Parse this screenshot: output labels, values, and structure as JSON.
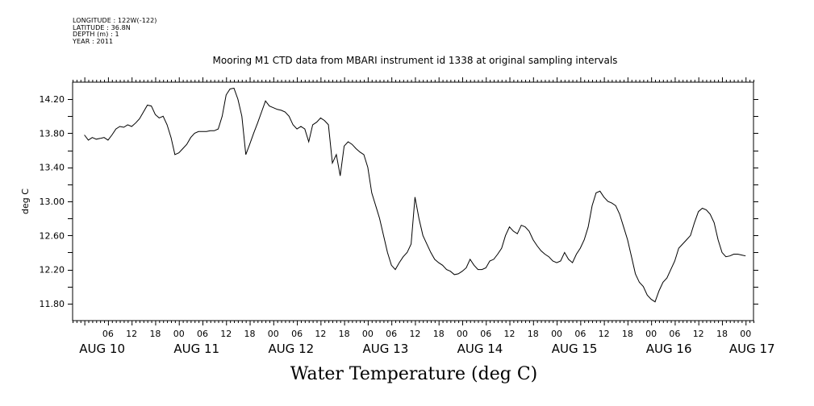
{
  "header": {
    "longitude": "LONGITUDE : 122W(-122)",
    "latitude": "LATITUDE : 36.8N",
    "depth": "DEPTH (m) : 1",
    "year": "YEAR : 2011",
    "title": "Mooring M1 CTD data from MBARI instrument id 1338 at original sampling intervals"
  },
  "chart_data": {
    "type": "line",
    "title": "Mooring M1 CTD data from MBARI instrument id 1338 at original sampling intervals",
    "xlabel": "Water Temperature (deg C)",
    "ylabel": "deg C",
    "xlim_hours_from_aug10_00": [
      -3,
      170
    ],
    "ylim": [
      11.6,
      14.4
    ],
    "y_ticks": [
      "11.80",
      "12.20",
      "12.60",
      "13.00",
      "13.40",
      "13.80",
      "14.20"
    ],
    "x_hour_ticks": [
      "06",
      "12",
      "18",
      "00",
      "06",
      "12",
      "18",
      "00",
      "06",
      "12",
      "18",
      "00",
      "06",
      "12",
      "18",
      "00",
      "06",
      "12",
      "18",
      "00",
      "06",
      "12",
      "18",
      "00",
      "06",
      "12",
      "18",
      "00"
    ],
    "day_labels": [
      "AUG 10",
      "AUG 11",
      "AUG 12",
      "AUG 13",
      "AUG 14",
      "AUG 15",
      "AUG 16",
      "AUG 17"
    ],
    "grid": false,
    "series": [
      {
        "color": "#000000",
        "hours_from_aug10_00": [
          0,
          1,
          2,
          3,
          4,
          5,
          6,
          7,
          8,
          9,
          10,
          11,
          12,
          13,
          14,
          15,
          16,
          17,
          18,
          19,
          20,
          21,
          22,
          23,
          24,
          25,
          26,
          27,
          28,
          29,
          30,
          31,
          32,
          33,
          34,
          35,
          36,
          37,
          38,
          39,
          40,
          41,
          42,
          43,
          44,
          45,
          46,
          47,
          48,
          49,
          50,
          51,
          52,
          53,
          54,
          55,
          56,
          57,
          58,
          59,
          60,
          61,
          62,
          63,
          64,
          65,
          66,
          67,
          68,
          69,
          70,
          71,
          72,
          73,
          74,
          75,
          76,
          77,
          78,
          79,
          80,
          81,
          82,
          83,
          84,
          85,
          86,
          87,
          88,
          89,
          90,
          91,
          92,
          93,
          94,
          95,
          96,
          97,
          98,
          99,
          100,
          101,
          102,
          103,
          104,
          105,
          106,
          107,
          108,
          109,
          110,
          111,
          112,
          113,
          114,
          115,
          116,
          117,
          118,
          119,
          120,
          121,
          122,
          123,
          124,
          125,
          126,
          127,
          128,
          129,
          130,
          131,
          132,
          133,
          134,
          135,
          136,
          137,
          138,
          139,
          140,
          141,
          142,
          143,
          144,
          145,
          146,
          147,
          148,
          149,
          150,
          151,
          152,
          153,
          154,
          155,
          156,
          157,
          158,
          159,
          160,
          161,
          162,
          163,
          164,
          165,
          166,
          167,
          168
        ],
        "values": [
          13.78,
          13.72,
          13.75,
          13.73,
          13.74,
          13.75,
          13.72,
          13.78,
          13.85,
          13.88,
          13.87,
          13.9,
          13.88,
          13.92,
          13.97,
          14.05,
          14.13,
          14.12,
          14.02,
          13.98,
          14.0,
          13.9,
          13.75,
          13.55,
          13.57,
          13.62,
          13.67,
          13.75,
          13.8,
          13.82,
          13.82,
          13.82,
          13.83,
          13.83,
          13.85,
          14.0,
          14.25,
          14.32,
          14.33,
          14.2,
          14.0,
          13.55,
          13.67,
          13.8,
          13.92,
          14.05,
          14.18,
          14.12,
          14.1,
          14.08,
          14.07,
          14.05,
          14.0,
          13.9,
          13.85,
          13.88,
          13.85,
          13.7,
          13.9,
          13.93,
          13.98,
          13.95,
          13.9,
          13.45,
          13.55,
          13.3,
          13.65,
          13.7,
          13.67,
          13.62,
          13.58,
          13.55,
          13.4,
          13.1,
          12.95,
          12.8,
          12.6,
          12.4,
          12.25,
          12.2,
          12.28,
          12.35,
          12.4,
          12.5,
          13.05,
          12.8,
          12.6,
          12.5,
          12.4,
          12.32,
          12.28,
          12.25,
          12.2,
          12.18,
          12.14,
          12.15,
          12.18,
          12.22,
          12.32,
          12.25,
          12.2,
          12.2,
          12.22,
          12.3,
          12.32,
          12.38,
          12.45,
          12.6,
          12.7,
          12.65,
          12.62,
          12.72,
          12.7,
          12.65,
          12.55,
          12.48,
          12.42,
          12.38,
          12.35,
          12.3,
          12.28,
          12.3,
          12.4,
          12.32,
          12.28,
          12.38,
          12.45,
          12.55,
          12.7,
          12.95,
          13.1,
          13.12,
          13.05,
          13.0,
          12.98,
          12.95,
          12.85,
          12.7,
          12.55,
          12.35,
          12.15,
          12.05,
          12.0,
          11.9,
          11.85,
          11.82,
          11.95,
          12.05,
          12.1,
          12.2,
          12.3,
          12.45,
          12.5,
          12.55,
          12.6,
          12.75,
          12.88,
          12.92,
          12.9,
          12.85,
          12.75,
          12.55,
          12.4,
          12.35,
          12.36,
          12.38,
          12.38,
          12.37,
          12.36,
          12.36,
          12.36,
          12.36
        ]
      }
    ]
  }
}
